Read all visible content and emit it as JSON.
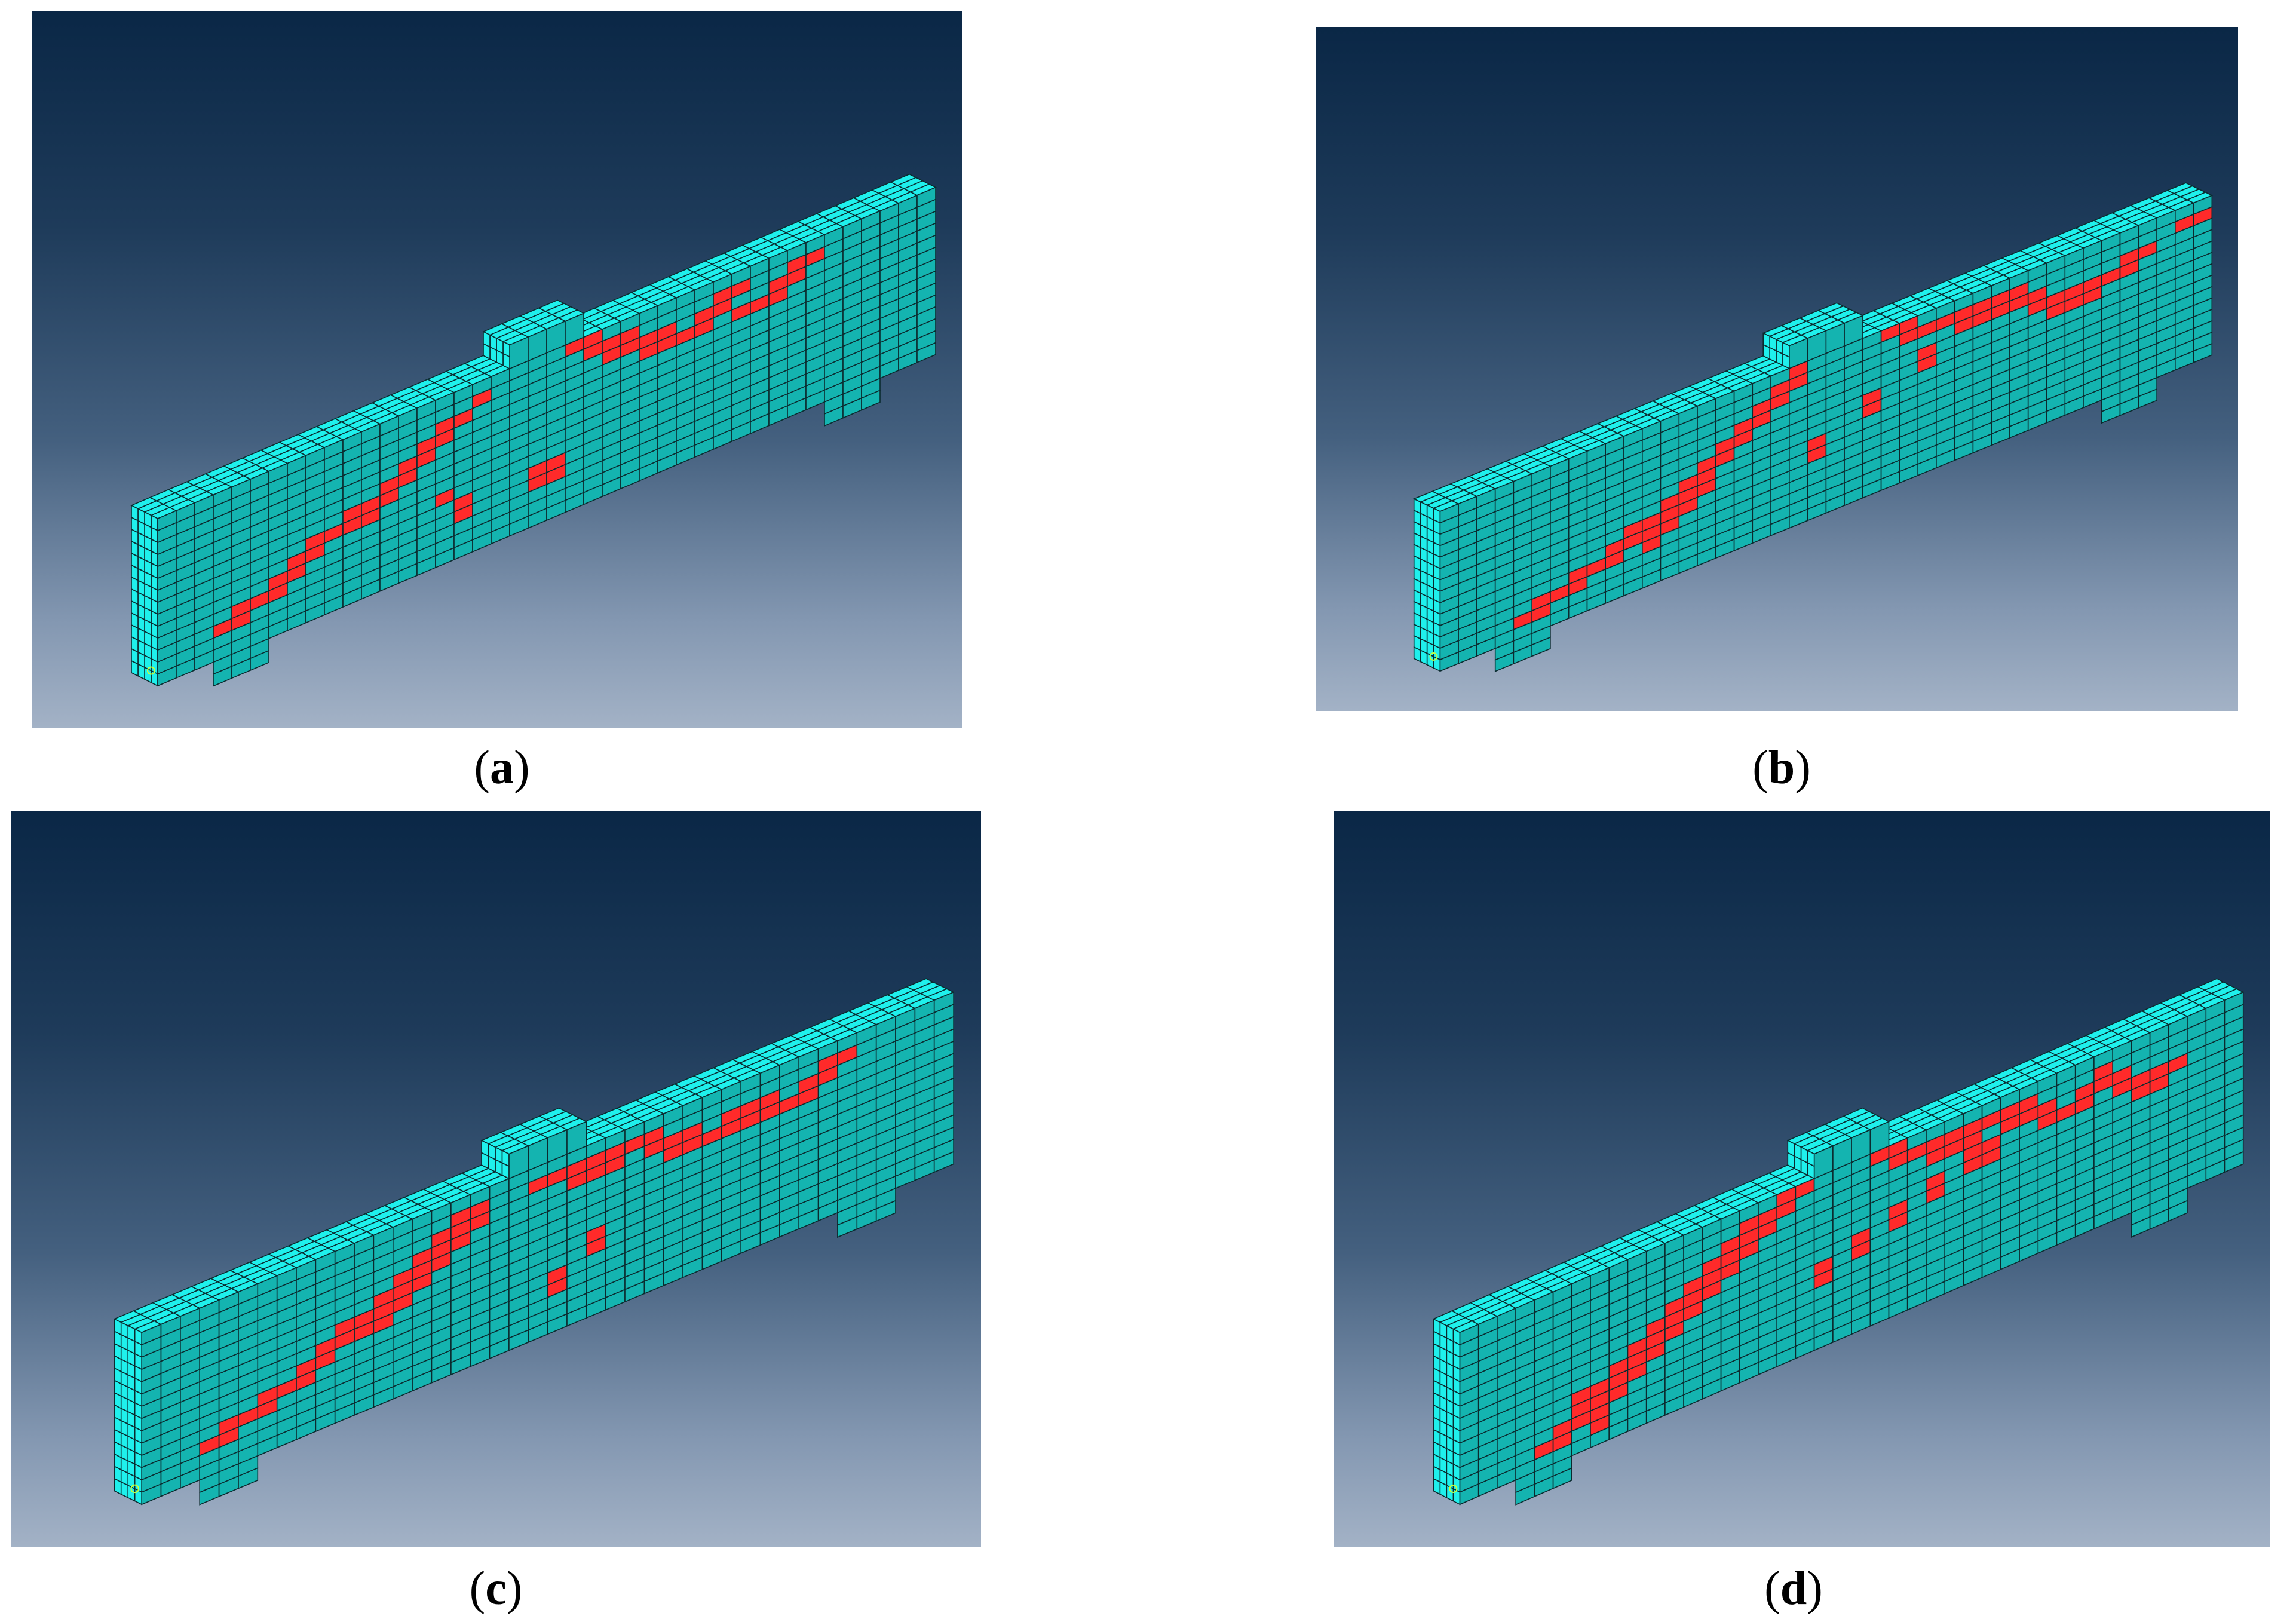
{
  "colors": {
    "element_face": "#19e3df",
    "element_side": "#14b4b0",
    "element_top": "#1ff0ec",
    "damaged": "#ff2a2a",
    "mesh_line": "#0b2b2f",
    "marker": "#c8ff3a"
  },
  "panels": [
    {
      "id": "a",
      "caption_open": "(",
      "caption_letter": "a",
      "caption_close": ")",
      "damage": [
        [
          3,
          2
        ],
        [
          4,
          2
        ],
        [
          4,
          3
        ],
        [
          5,
          3
        ],
        [
          6,
          3
        ],
        [
          6,
          4
        ],
        [
          7,
          4
        ],
        [
          7,
          5
        ],
        [
          8,
          5
        ],
        [
          8,
          6
        ],
        [
          9,
          6
        ],
        [
          10,
          6
        ],
        [
          11,
          6
        ],
        [
          10,
          7
        ],
        [
          11,
          7
        ],
        [
          12,
          7
        ],
        [
          12,
          8
        ],
        [
          13,
          8
        ],
        [
          13,
          9
        ],
        [
          14,
          9
        ],
        [
          14,
          10
        ],
        [
          15,
          10
        ],
        [
          15,
          11
        ],
        [
          16,
          11
        ],
        [
          17,
          12
        ],
        [
          20,
          3
        ],
        [
          21,
          3
        ],
        [
          20,
          4
        ],
        [
          21,
          4
        ],
        [
          16,
          3
        ],
        [
          16,
          4
        ],
        [
          15,
          5
        ],
        [
          22,
          13
        ],
        [
          23,
          13
        ],
        [
          23,
          12
        ],
        [
          24,
          12
        ],
        [
          25,
          12
        ],
        [
          25,
          11
        ],
        [
          26,
          11
        ],
        [
          27,
          11
        ],
        [
          27,
          10
        ],
        [
          28,
          10
        ],
        [
          29,
          10
        ],
        [
          29,
          11
        ],
        [
          30,
          11
        ],
        [
          30,
          12
        ],
        [
          31,
          12
        ],
        [
          31,
          10
        ],
        [
          32,
          10
        ],
        [
          33,
          10
        ],
        [
          33,
          11
        ],
        [
          34,
          11
        ],
        [
          34,
          12
        ],
        [
          35,
          12
        ],
        [
          24,
          11
        ],
        [
          26,
          10
        ]
      ]
    },
    {
      "id": "b",
      "caption_open": "(",
      "caption_letter": "b",
      "caption_close": ")",
      "damage": [
        [
          4,
          1
        ],
        [
          5,
          1
        ],
        [
          5,
          2
        ],
        [
          6,
          2
        ],
        [
          7,
          2
        ],
        [
          7,
          3
        ],
        [
          8,
          3
        ],
        [
          9,
          3
        ],
        [
          9,
          4
        ],
        [
          10,
          4
        ],
        [
          11,
          4
        ],
        [
          10,
          5
        ],
        [
          11,
          5
        ],
        [
          12,
          5
        ],
        [
          12,
          6
        ],
        [
          13,
          6
        ],
        [
          13,
          7
        ],
        [
          14,
          7
        ],
        [
          14,
          8
        ],
        [
          15,
          8
        ],
        [
          15,
          9
        ],
        [
          16,
          9
        ],
        [
          16,
          10
        ],
        [
          17,
          10
        ],
        [
          17,
          11
        ],
        [
          18,
          11
        ],
        [
          18,
          12
        ],
        [
          19,
          12
        ],
        [
          19,
          13
        ],
        [
          11,
          3
        ],
        [
          12,
          4
        ],
        [
          13,
          5
        ],
        [
          14,
          6
        ],
        [
          20,
          5
        ],
        [
          20,
          6
        ],
        [
          23,
          7
        ],
        [
          23,
          8
        ],
        [
          26,
          9
        ],
        [
          26,
          10
        ],
        [
          24,
          13
        ],
        [
          25,
          13
        ],
        [
          25,
          12
        ],
        [
          26,
          12
        ],
        [
          27,
          12
        ],
        [
          28,
          12
        ],
        [
          28,
          11
        ],
        [
          29,
          11
        ],
        [
          30,
          11
        ],
        [
          30,
          12
        ],
        [
          31,
          12
        ],
        [
          31,
          11
        ],
        [
          32,
          11
        ],
        [
          32,
          10
        ],
        [
          33,
          10
        ],
        [
          33,
          9
        ],
        [
          34,
          9
        ],
        [
          35,
          9
        ],
        [
          35,
          10
        ],
        [
          36,
          10
        ],
        [
          37,
          10
        ],
        [
          37,
          11
        ],
        [
          38,
          11
        ],
        [
          40,
          12
        ],
        [
          41,
          12
        ],
        [
          29,
          12
        ],
        [
          34,
          10
        ]
      ]
    },
    {
      "id": "c",
      "caption_open": "(",
      "caption_letter": "c",
      "caption_close": ")",
      "damage": [
        [
          3,
          2
        ],
        [
          4,
          2
        ],
        [
          4,
          3
        ],
        [
          5,
          3
        ],
        [
          6,
          3
        ],
        [
          6,
          4
        ],
        [
          7,
          4
        ],
        [
          8,
          4
        ],
        [
          8,
          5
        ],
        [
          9,
          5
        ],
        [
          9,
          6
        ],
        [
          10,
          6
        ],
        [
          10,
          7
        ],
        [
          11,
          7
        ],
        [
          12,
          7
        ],
        [
          12,
          8
        ],
        [
          13,
          8
        ],
        [
          13,
          9
        ],
        [
          14,
          9
        ],
        [
          14,
          10
        ],
        [
          15,
          10
        ],
        [
          15,
          11
        ],
        [
          16,
          11
        ],
        [
          16,
          12
        ],
        [
          17,
          12
        ],
        [
          11,
          6
        ],
        [
          12,
          6
        ],
        [
          13,
          7
        ],
        [
          14,
          8
        ],
        [
          15,
          9
        ],
        [
          16,
          10
        ],
        [
          17,
          11
        ],
        [
          21,
          3
        ],
        [
          21,
          4
        ],
        [
          23,
          5
        ],
        [
          23,
          6
        ],
        [
          20,
          12
        ],
        [
          21,
          12
        ],
        [
          22,
          12
        ],
        [
          22,
          11
        ],
        [
          23,
          11
        ],
        [
          24,
          11
        ],
        [
          24,
          12
        ],
        [
          25,
          12
        ],
        [
          26,
          12
        ],
        [
          26,
          11
        ],
        [
          27,
          11
        ],
        [
          28,
          11
        ],
        [
          28,
          10
        ],
        [
          29,
          10
        ],
        [
          30,
          10
        ],
        [
          30,
          11
        ],
        [
          31,
          11
        ],
        [
          32,
          11
        ],
        [
          32,
          10
        ],
        [
          33,
          10
        ],
        [
          34,
          10
        ],
        [
          34,
          11
        ],
        [
          35,
          11
        ],
        [
          35,
          12
        ],
        [
          36,
          12
        ],
        [
          23,
          12
        ],
        [
          27,
          10
        ],
        [
          31,
          10
        ]
      ]
    },
    {
      "id": "d",
      "caption_open": "(",
      "caption_letter": "d",
      "caption_close": ")",
      "damage": [
        [
          4,
          1
        ],
        [
          5,
          1
        ],
        [
          5,
          2
        ],
        [
          6,
          2
        ],
        [
          6,
          3
        ],
        [
          7,
          3
        ],
        [
          8,
          3
        ],
        [
          8,
          4
        ],
        [
          9,
          4
        ],
        [
          9,
          5
        ],
        [
          10,
          5
        ],
        [
          10,
          6
        ],
        [
          11,
          6
        ],
        [
          11,
          7
        ],
        [
          12,
          7
        ],
        [
          12,
          8
        ],
        [
          13,
          8
        ],
        [
          13,
          9
        ],
        [
          14,
          9
        ],
        [
          14,
          10
        ],
        [
          15,
          10
        ],
        [
          15,
          11
        ],
        [
          16,
          11
        ],
        [
          16,
          12
        ],
        [
          17,
          12
        ],
        [
          17,
          13
        ],
        [
          18,
          13
        ],
        [
          6,
          4
        ],
        [
          7,
          4
        ],
        [
          8,
          5
        ],
        [
          9,
          6
        ],
        [
          10,
          7
        ],
        [
          11,
          8
        ],
        [
          12,
          9
        ],
        [
          13,
          10
        ],
        [
          14,
          11
        ],
        [
          15,
          12
        ],
        [
          7,
          1
        ],
        [
          7,
          2
        ],
        [
          19,
          5
        ],
        [
          19,
          6
        ],
        [
          21,
          6
        ],
        [
          21,
          7
        ],
        [
          23,
          7
        ],
        [
          23,
          8
        ],
        [
          25,
          8
        ],
        [
          25,
          9
        ],
        [
          27,
          9
        ],
        [
          27,
          10
        ],
        [
          28,
          9
        ],
        [
          28,
          10
        ],
        [
          22,
          13
        ],
        [
          23,
          13
        ],
        [
          23,
          12
        ],
        [
          24,
          12
        ],
        [
          25,
          12
        ],
        [
          25,
          11
        ],
        [
          26,
          11
        ],
        [
          27,
          11
        ],
        [
          27,
          12
        ],
        [
          28,
          12
        ],
        [
          29,
          12
        ],
        [
          29,
          11
        ],
        [
          30,
          11
        ],
        [
          31,
          11
        ],
        [
          31,
          10
        ],
        [
          32,
          10
        ],
        [
          33,
          10
        ],
        [
          33,
          11
        ],
        [
          34,
          11
        ],
        [
          35,
          11
        ],
        [
          35,
          10
        ],
        [
          36,
          10
        ],
        [
          36,
          9
        ],
        [
          37,
          9
        ],
        [
          37,
          10
        ],
        [
          38,
          10
        ],
        [
          26,
          12
        ],
        [
          30,
          12
        ],
        [
          34,
          12
        ]
      ]
    }
  ]
}
